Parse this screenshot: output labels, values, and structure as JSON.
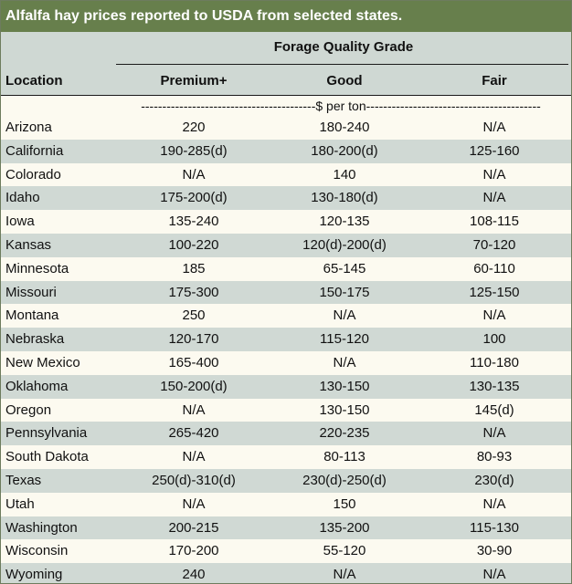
{
  "title": "Alfalfa hay prices reported to USDA from selected states.",
  "header": {
    "group": "Forage Quality Grade",
    "location": "Location",
    "premium": "Premium+",
    "good": "Good",
    "fair": "Fair",
    "units": "-----------------------------------------$ per ton-----------------------------------------"
  },
  "rows": [
    {
      "location": "Arizona",
      "premium": "220",
      "good": "180-240",
      "fair": "N/A"
    },
    {
      "location": "California",
      "premium": "190-285(d)",
      "good": "180-200(d)",
      "fair": "125-160"
    },
    {
      "location": "Colorado",
      "premium": "N/A",
      "good": "140",
      "fair": "N/A"
    },
    {
      "location": "Idaho",
      "premium": "175-200(d)",
      "good": "130-180(d)",
      "fair": "N/A"
    },
    {
      "location": "Iowa",
      "premium": "135-240",
      "good": "120-135",
      "fair": "108-115"
    },
    {
      "location": "Kansas",
      "premium": "100-220",
      "good": "120(d)-200(d)",
      "fair": "70-120"
    },
    {
      "location": "Minnesota",
      "premium": "185",
      "good": "65-145",
      "fair": "60-110"
    },
    {
      "location": "Missouri",
      "premium": "175-300",
      "good": "150-175",
      "fair": "125-150"
    },
    {
      "location": "Montana",
      "premium": "250",
      "good": "N/A",
      "fair": "N/A"
    },
    {
      "location": "Nebraska",
      "premium": "120-170",
      "good": "115-120",
      "fair": "100"
    },
    {
      "location": "New Mexico",
      "premium": "165-400",
      "good": "N/A",
      "fair": "110-180"
    },
    {
      "location": "Oklahoma",
      "premium": "150-200(d)",
      "good": "130-150",
      "fair": "130-135"
    },
    {
      "location": "Oregon",
      "premium": "N/A",
      "good": "130-150",
      "fair": "145(d)"
    },
    {
      "location": "Pennsylvania",
      "premium": "265-420",
      "good": "220-235",
      "fair": "N/A"
    },
    {
      "location": "South Dakota",
      "premium": "N/A",
      "good": "80-113",
      "fair": "80-93"
    },
    {
      "location": "Texas",
      "premium": "250(d)-310(d)",
      "good": "230(d)-250(d)",
      "fair": "230(d)"
    },
    {
      "location": "Utah",
      "premium": "N/A",
      "good": "150",
      "fair": "N/A"
    },
    {
      "location": "Washington",
      "premium": "200-215",
      "good": "135-200",
      "fair": "115-130"
    },
    {
      "location": "Wisconsin",
      "premium": "170-200",
      "good": "55-120",
      "fair": "30-90"
    },
    {
      "location": "Wyoming",
      "premium": "240",
      "good": "N/A",
      "fair": "N/A"
    }
  ]
}
